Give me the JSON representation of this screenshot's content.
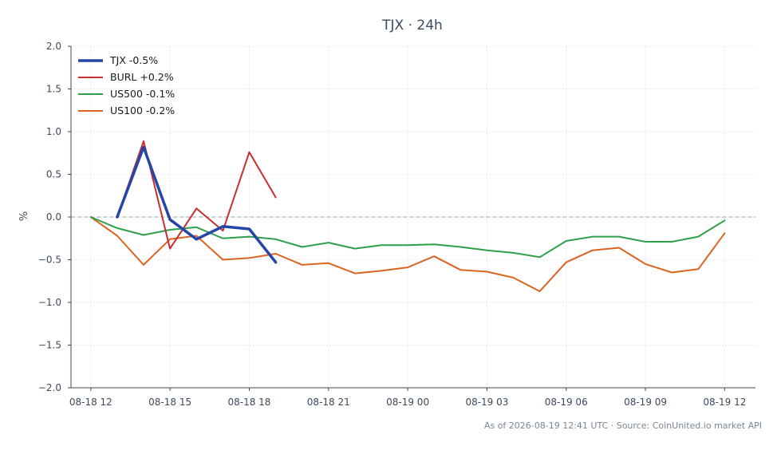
{
  "chart_data": {
    "type": "line",
    "title": "TJX · 24h",
    "ylabel": "%",
    "ylim": [
      -2.0,
      2.0
    ],
    "yticks": [
      -2.0,
      -1.5,
      -1.0,
      -0.5,
      0.0,
      0.5,
      1.0,
      1.5,
      2.0
    ],
    "ytick_labels": [
      "−2.0",
      "−1.5",
      "−1.0",
      "−0.5",
      "0.0",
      "0.5",
      "1.0",
      "1.5",
      "2.0"
    ],
    "x_range": [
      "2026-08-18 11:15",
      "2026-08-19 13:10"
    ],
    "xticks": [
      "08-18 12",
      "08-18 15",
      "08-18 18",
      "08-18 21",
      "08-19 00",
      "08-19 03",
      "08-19 06",
      "08-19 09",
      "08-19 12"
    ],
    "x": [
      "08-18 12",
      "08-18 13",
      "08-18 14",
      "08-18 15",
      "08-18 16",
      "08-18 17",
      "08-18 18",
      "08-18 19",
      "08-18 20",
      "08-18 21",
      "08-18 22",
      "08-18 23",
      "08-19 00",
      "08-19 01",
      "08-19 02",
      "08-19 03",
      "08-19 04",
      "08-19 05",
      "08-19 06",
      "08-19 07",
      "08-19 08",
      "08-19 09",
      "08-19 10",
      "08-19 11",
      "08-19 12"
    ],
    "grid": true,
    "legend": "top-left",
    "zero_line": true,
    "series": [
      {
        "name": "TJX -0.5%",
        "color": "#2546a8",
        "width": 3.5,
        "values": [
          null,
          0.0,
          0.82,
          -0.03,
          -0.26,
          -0.11,
          -0.14,
          -0.53,
          null,
          null,
          null,
          null,
          null,
          null,
          null,
          null,
          null,
          null,
          null,
          null,
          null,
          null,
          null,
          null,
          null
        ]
      },
      {
        "name": "BURL +0.2%",
        "color": "#c62f2f",
        "width": 2,
        "values": [
          null,
          0.0,
          0.89,
          -0.37,
          0.1,
          -0.16,
          0.76,
          0.23,
          null,
          null,
          null,
          null,
          null,
          null,
          null,
          null,
          null,
          null,
          null,
          null,
          null,
          null,
          null,
          null,
          null
        ]
      },
      {
        "name": "US500 -0.1%",
        "color": "#2ea04a",
        "width": 2,
        "values": [
          0.0,
          -0.13,
          -0.21,
          -0.15,
          -0.12,
          -0.25,
          -0.23,
          -0.26,
          -0.35,
          -0.3,
          -0.37,
          -0.33,
          -0.33,
          -0.32,
          -0.35,
          -0.39,
          -0.42,
          -0.47,
          -0.28,
          -0.23,
          -0.23,
          -0.29,
          -0.29,
          -0.23,
          -0.04
        ]
      },
      {
        "name": "US100 -0.2%",
        "color": "#dd6320",
        "width": 2,
        "values": [
          0.0,
          -0.22,
          -0.56,
          -0.26,
          -0.22,
          -0.5,
          -0.48,
          -0.43,
          -0.56,
          -0.54,
          -0.66,
          -0.63,
          -0.59,
          -0.46,
          -0.62,
          -0.64,
          -0.71,
          -0.87,
          -0.53,
          -0.39,
          -0.36,
          -0.55,
          -0.65,
          -0.61,
          -0.19
        ]
      }
    ],
    "footer": "As of 2026-08-19 12:41 UTC · Source: CoinUnited.io market API"
  }
}
